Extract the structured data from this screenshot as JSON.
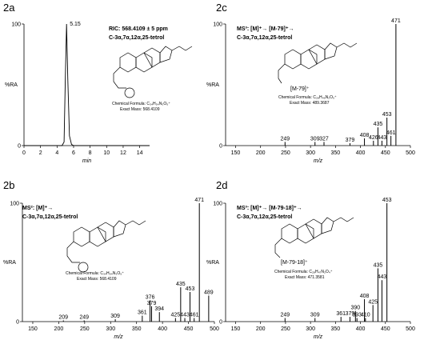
{
  "chart_data": [
    {
      "id": "2a",
      "panel_label": "2a",
      "type": "line",
      "xlabel": "min",
      "ylabel": "%RA",
      "xlim": [
        0,
        15.2
      ],
      "ylim": [
        0,
        100
      ],
      "xticks": [
        "0",
        "2",
        "4",
        "6",
        "8",
        "10",
        "12",
        "14"
      ],
      "yticks": [
        "0",
        "100"
      ],
      "peak_label": "5.15",
      "series": [
        {
          "values": [
            {
              "x": 0,
              "y": 0
            },
            {
              "x": 4.6,
              "y": 0
            },
            {
              "x": 4.85,
              "y": 3
            },
            {
              "x": 5.0,
              "y": 55
            },
            {
              "x": 5.15,
              "y": 100
            },
            {
              "x": 5.3,
              "y": 55
            },
            {
              "x": 5.5,
              "y": 8
            },
            {
              "x": 5.75,
              "y": 1
            },
            {
              "x": 6.0,
              "y": 0
            },
            {
              "x": 15.2,
              "y": 0
            }
          ]
        }
      ],
      "annotation_lines": [
        "RIC: 568.4109 ± 5 ppm",
        "C-3α,7α,12α,25-tetrol"
      ],
      "structure": {
        "formula": "Chemical Formula: C₃₄H₅₄N₃O₅⁺",
        "mass": "Exact Mass: 568.4109"
      }
    },
    {
      "id": "2c",
      "panel_label": "2c",
      "type": "bar",
      "xlabel": "m/z",
      "ylabel": "%RA",
      "xlim": [
        130,
        500
      ],
      "ylim": [
        0,
        100
      ],
      "xticks": [
        150,
        200,
        250,
        300,
        350,
        400,
        450,
        500
      ],
      "yticks": [
        "0",
        "100"
      ],
      "annotation_lines": [
        "MS³: [M]⁺→ [M-79]⁺→",
        "C-3α,7α,12α,25-tetrol"
      ],
      "ion_label": "[M-79]⁺",
      "structure": {
        "formula": "Chemical Formula: C₂₈H₄₉N₂O₅⁺",
        "mass": "Exact Mass: 489.3687"
      },
      "peaks": [
        {
          "x": 249,
          "y": 3,
          "label": "249"
        },
        {
          "x": 309,
          "y": 3,
          "label": "309"
        },
        {
          "x": 327,
          "y": 3,
          "label": "327"
        },
        {
          "x": 379,
          "y": 2,
          "label": "379"
        },
        {
          "x": 408,
          "y": 6,
          "label": "408"
        },
        {
          "x": 426,
          "y": 4,
          "label": "426"
        },
        {
          "x": 435,
          "y": 15,
          "label": "435"
        },
        {
          "x": 443,
          "y": 4,
          "label": "443"
        },
        {
          "x": 453,
          "y": 23,
          "label": "453"
        },
        {
          "x": 461,
          "y": 8,
          "label": "461"
        },
        {
          "x": 471,
          "y": 100,
          "label": "471"
        }
      ]
    },
    {
      "id": "2b",
      "panel_label": "2b",
      "type": "bar",
      "xlabel": "m/z",
      "ylabel": "%RA",
      "xlim": [
        130,
        500
      ],
      "ylim": [
        0,
        100
      ],
      "xticks": [
        150,
        200,
        250,
        300,
        350,
        400,
        450,
        500
      ],
      "yticks": [
        "0",
        "100"
      ],
      "annotation_lines": [
        "MS²: [M]⁺→",
        "C-3α,7α,12α,25-tetrol"
      ],
      "structure": {
        "formula": "Chemical Formula: C₃₄H₅₄N₃O₅⁺",
        "mass": "Exact Mass: 568.4109"
      },
      "peaks": [
        {
          "x": 209,
          "y": 1,
          "label": "209"
        },
        {
          "x": 249,
          "y": 1,
          "label": "249"
        },
        {
          "x": 309,
          "y": 2,
          "label": "309"
        },
        {
          "x": 361,
          "y": 5,
          "label": "361"
        },
        {
          "x": 376,
          "y": 18,
          "label": "376"
        },
        {
          "x": 379,
          "y": 13,
          "label": "379"
        },
        {
          "x": 394,
          "y": 8,
          "label": "394"
        },
        {
          "x": 425,
          "y": 3,
          "label": "425"
        },
        {
          "x": 435,
          "y": 29,
          "label": "435"
        },
        {
          "x": 443,
          "y": 3,
          "label": "443"
        },
        {
          "x": 453,
          "y": 25,
          "label": "453"
        },
        {
          "x": 461,
          "y": 3,
          "label": "461"
        },
        {
          "x": 471,
          "y": 100,
          "label": "471"
        },
        {
          "x": 489,
          "y": 22,
          "label": "489"
        }
      ]
    },
    {
      "id": "2d",
      "panel_label": "2d",
      "type": "bar",
      "xlabel": "m/z",
      "ylabel": "%RA",
      "xlim": [
        130,
        500
      ],
      "ylim": [
        0,
        100
      ],
      "xticks": [
        150,
        200,
        250,
        300,
        350,
        400,
        450,
        500
      ],
      "yticks": [
        "0",
        "100"
      ],
      "annotation_lines": [
        "MS³: [M]⁺→ [M-79-18]⁺→",
        "C-3α,7α,12α,25-tetrol"
      ],
      "ion_label": "[M-79-18]⁺",
      "structure": {
        "formula": "Chemical Formula: C₂₈H₄₇N₂O₄⁺",
        "mass": "Exact Mass: 471.3581"
      },
      "peaks": [
        {
          "x": 249,
          "y": 3,
          "label": "249"
        },
        {
          "x": 309,
          "y": 3,
          "label": "309"
        },
        {
          "x": 361,
          "y": 4,
          "label": "361"
        },
        {
          "x": 379,
          "y": 4,
          "label": "379"
        },
        {
          "x": 390,
          "y": 9,
          "label": "390"
        },
        {
          "x": 393,
          "y": 3,
          "label": "393"
        },
        {
          "x": 408,
          "y": 19,
          "label": "408"
        },
        {
          "x": 410,
          "y": 3,
          "label": "410"
        },
        {
          "x": 425,
          "y": 14,
          "label": "425"
        },
        {
          "x": 435,
          "y": 45,
          "label": "435"
        },
        {
          "x": 443,
          "y": 35,
          "label": "443"
        },
        {
          "x": 453,
          "y": 100,
          "label": "453"
        }
      ]
    }
  ]
}
